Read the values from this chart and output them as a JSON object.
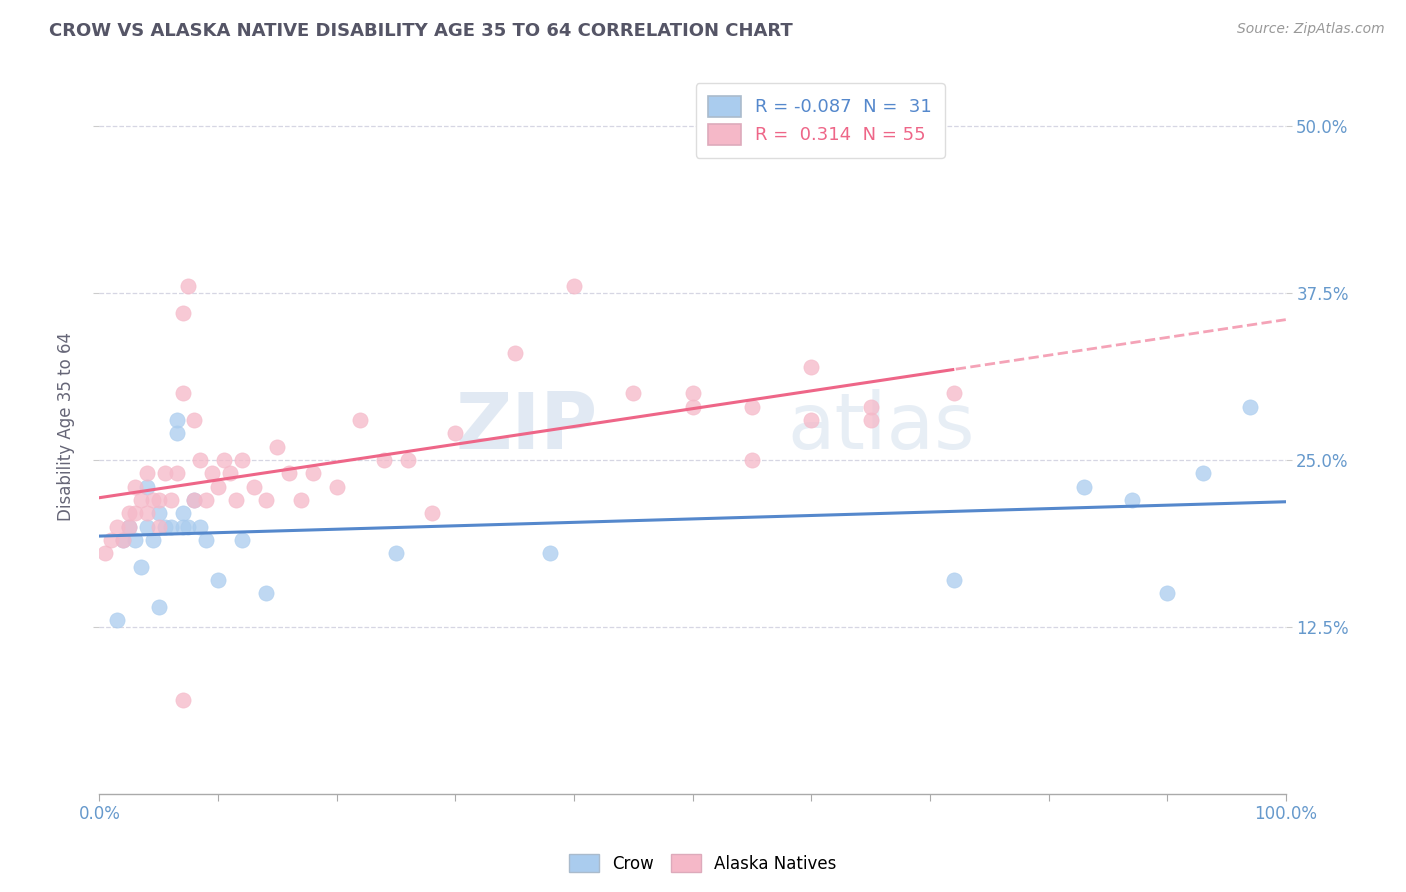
{
  "title": "CROW VS ALASKA NATIVE DISABILITY AGE 35 TO 64 CORRELATION CHART",
  "source": "Source: ZipAtlas.com",
  "ylabel": "Disability Age 35 to 64",
  "xlim": [
    0,
    1.0
  ],
  "ylim": [
    0.0,
    0.55
  ],
  "ytick_values": [
    0.125,
    0.25,
    0.375,
    0.5
  ],
  "ytick_labels": [
    "12.5%",
    "25.0%",
    "37.5%",
    "50.0%"
  ],
  "crow_R": -0.087,
  "crow_N": 31,
  "alaska_R": 0.314,
  "alaska_N": 55,
  "crow_color": "#aaccee",
  "alaska_color": "#f5b8c8",
  "crow_line_color": "#5588cc",
  "alaska_line_color": "#ee6688",
  "background_color": "#ffffff",
  "watermark_zip": "ZIP",
  "watermark_atlas": "atlas",
  "crow_x": [
    0.015,
    0.02,
    0.025,
    0.03,
    0.035,
    0.04,
    0.04,
    0.045,
    0.05,
    0.05,
    0.055,
    0.06,
    0.065,
    0.065,
    0.07,
    0.07,
    0.075,
    0.08,
    0.085,
    0.09,
    0.1,
    0.12,
    0.14,
    0.25,
    0.38,
    0.72,
    0.83,
    0.87,
    0.9,
    0.93,
    0.97
  ],
  "crow_y": [
    0.13,
    0.19,
    0.2,
    0.19,
    0.17,
    0.23,
    0.2,
    0.19,
    0.21,
    0.14,
    0.2,
    0.2,
    0.27,
    0.28,
    0.2,
    0.21,
    0.2,
    0.22,
    0.2,
    0.19,
    0.16,
    0.19,
    0.15,
    0.18,
    0.18,
    0.16,
    0.23,
    0.22,
    0.15,
    0.24,
    0.29
  ],
  "alaska_x": [
    0.005,
    0.01,
    0.015,
    0.02,
    0.025,
    0.025,
    0.03,
    0.03,
    0.035,
    0.04,
    0.04,
    0.045,
    0.05,
    0.05,
    0.055,
    0.06,
    0.065,
    0.07,
    0.07,
    0.075,
    0.08,
    0.08,
    0.085,
    0.09,
    0.095,
    0.1,
    0.105,
    0.11,
    0.115,
    0.12,
    0.13,
    0.14,
    0.15,
    0.16,
    0.17,
    0.18,
    0.2,
    0.22,
    0.24,
    0.26,
    0.28,
    0.3,
    0.35,
    0.4,
    0.45,
    0.5,
    0.55,
    0.6,
    0.65,
    0.72,
    0.5,
    0.55,
    0.6,
    0.65,
    0.07
  ],
  "alaska_y": [
    0.18,
    0.19,
    0.2,
    0.19,
    0.2,
    0.21,
    0.21,
    0.23,
    0.22,
    0.21,
    0.24,
    0.22,
    0.2,
    0.22,
    0.24,
    0.22,
    0.24,
    0.3,
    0.36,
    0.38,
    0.28,
    0.22,
    0.25,
    0.22,
    0.24,
    0.23,
    0.25,
    0.24,
    0.22,
    0.25,
    0.23,
    0.22,
    0.26,
    0.24,
    0.22,
    0.24,
    0.23,
    0.28,
    0.25,
    0.25,
    0.21,
    0.27,
    0.33,
    0.38,
    0.3,
    0.29,
    0.25,
    0.28,
    0.28,
    0.3,
    0.3,
    0.29,
    0.32,
    0.29,
    0.07
  ],
  "grid_color": "#ccccdd",
  "tick_label_color": "#6699cc",
  "title_color": "#555566",
  "source_color": "#999999"
}
